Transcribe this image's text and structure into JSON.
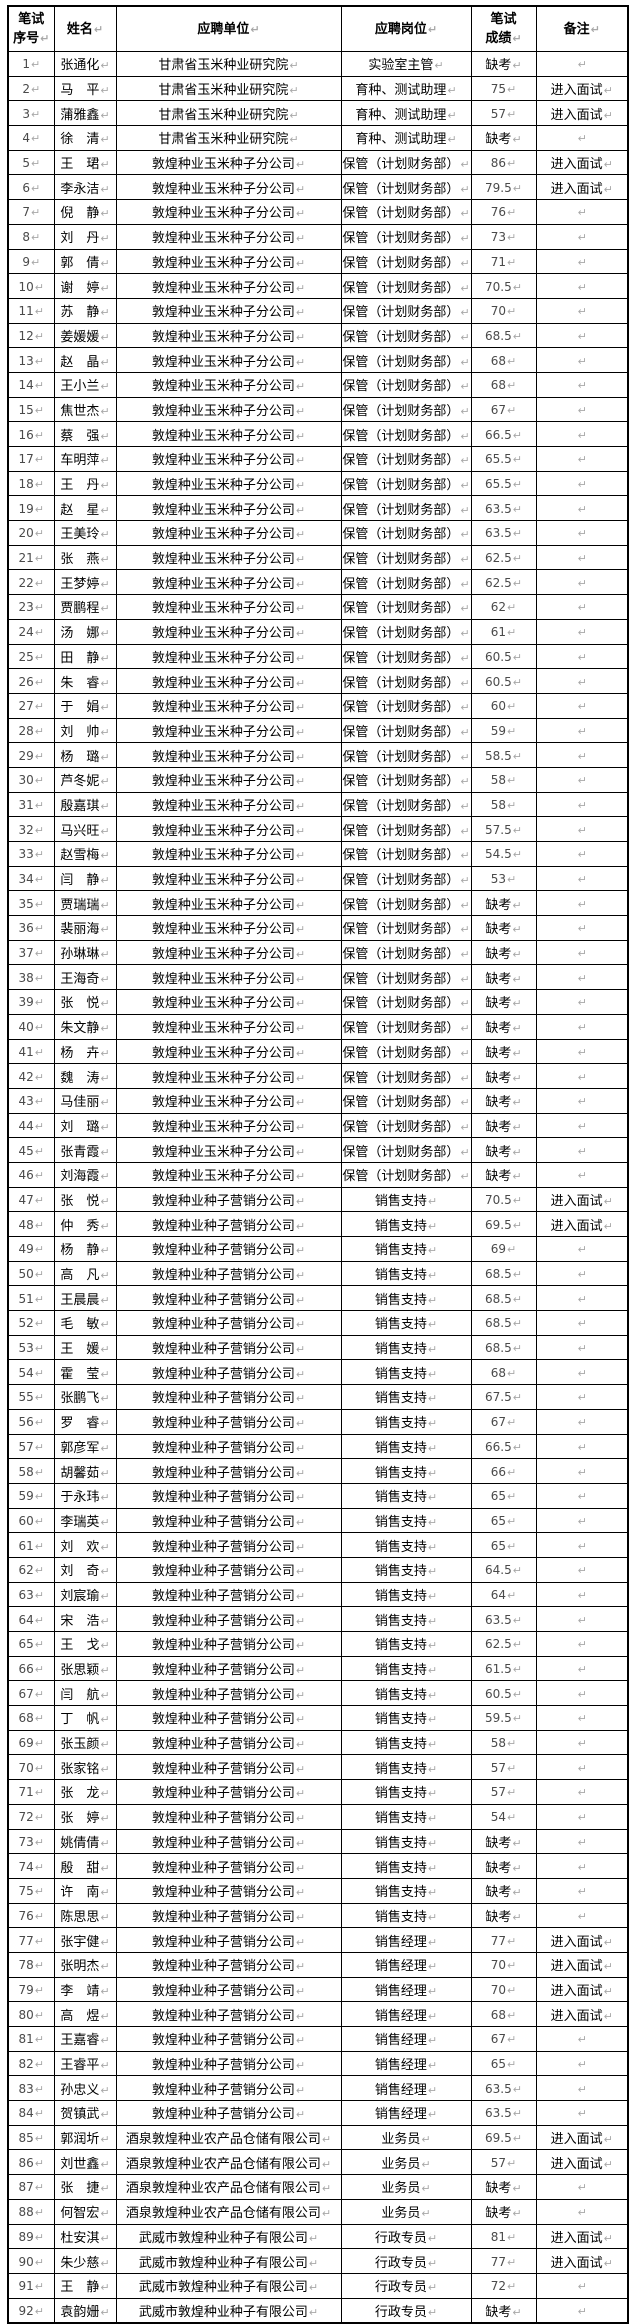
{
  "document": {
    "paragraph_mark": "↵",
    "columns": [
      {
        "key": "index",
        "label": "笔试\n序号"
      },
      {
        "key": "name",
        "label": "姓名"
      },
      {
        "key": "unit",
        "label": "应聘单位"
      },
      {
        "key": "position",
        "label": "应聘岗位"
      },
      {
        "key": "score",
        "label": "笔试\n成绩"
      },
      {
        "key": "remark",
        "label": "备注"
      }
    ],
    "remark_pass_label": "进入面试",
    "score_absent_label": "缺考",
    "rows": [
      [
        "1",
        "张通化",
        "甘肃省玉米种业研究院",
        "实验室主管",
        "缺考",
        ""
      ],
      [
        "2",
        "马　平",
        "甘肃省玉米种业研究院",
        "育种、测试助理",
        "75",
        "进入面试"
      ],
      [
        "3",
        "蒲雅鑫",
        "甘肃省玉米种业研究院",
        "育种、测试助理",
        "57",
        "进入面试"
      ],
      [
        "4",
        "徐　清",
        "甘肃省玉米种业研究院",
        "育种、测试助理",
        "缺考",
        ""
      ],
      [
        "5",
        "王　珺",
        "敦煌种业玉米种子分公司",
        "保管（计划财务部）",
        "86",
        "进入面试"
      ],
      [
        "6",
        "李永洁",
        "敦煌种业玉米种子分公司",
        "保管（计划财务部）",
        "79.5",
        "进入面试"
      ],
      [
        "7",
        "倪　静",
        "敦煌种业玉米种子分公司",
        "保管（计划财务部）",
        "76",
        ""
      ],
      [
        "8",
        "刘　丹",
        "敦煌种业玉米种子分公司",
        "保管（计划财务部）",
        "73",
        ""
      ],
      [
        "9",
        "郭　倩",
        "敦煌种业玉米种子分公司",
        "保管（计划财务部）",
        "71",
        ""
      ],
      [
        "10",
        "谢　婷",
        "敦煌种业玉米种子分公司",
        "保管（计划财务部）",
        "70.5",
        ""
      ],
      [
        "11",
        "苏　静",
        "敦煌种业玉米种子分公司",
        "保管（计划财务部）",
        "70",
        ""
      ],
      [
        "12",
        "姜媛媛",
        "敦煌种业玉米种子分公司",
        "保管（计划财务部）",
        "68.5",
        ""
      ],
      [
        "13",
        "赵　晶",
        "敦煌种业玉米种子分公司",
        "保管（计划财务部）",
        "68",
        ""
      ],
      [
        "14",
        "王小兰",
        "敦煌种业玉米种子分公司",
        "保管（计划财务部）",
        "68",
        ""
      ],
      [
        "15",
        "焦世杰",
        "敦煌种业玉米种子分公司",
        "保管（计划财务部）",
        "67",
        ""
      ],
      [
        "16",
        "蔡　强",
        "敦煌种业玉米种子分公司",
        "保管（计划财务部）",
        "66.5",
        ""
      ],
      [
        "17",
        "车明萍",
        "敦煌种业玉米种子分公司",
        "保管（计划财务部）",
        "65.5",
        ""
      ],
      [
        "18",
        "王　丹",
        "敦煌种业玉米种子分公司",
        "保管（计划财务部）",
        "65.5",
        ""
      ],
      [
        "19",
        "赵　星",
        "敦煌种业玉米种子分公司",
        "保管（计划财务部）",
        "63.5",
        ""
      ],
      [
        "20",
        "王美玲",
        "敦煌种业玉米种子分公司",
        "保管（计划财务部）",
        "63.5",
        ""
      ],
      [
        "21",
        "张　燕",
        "敦煌种业玉米种子分公司",
        "保管（计划财务部）",
        "62.5",
        ""
      ],
      [
        "22",
        "王梦婷",
        "敦煌种业玉米种子分公司",
        "保管（计划财务部）",
        "62.5",
        ""
      ],
      [
        "23",
        "贾鹏程",
        "敦煌种业玉米种子分公司",
        "保管（计划财务部）",
        "62",
        ""
      ],
      [
        "24",
        "汤　娜",
        "敦煌种业玉米种子分公司",
        "保管（计划财务部）",
        "61",
        ""
      ],
      [
        "25",
        "田　静",
        "敦煌种业玉米种子分公司",
        "保管（计划财务部）",
        "60.5",
        ""
      ],
      [
        "26",
        "朱　睿",
        "敦煌种业玉米种子分公司",
        "保管（计划财务部）",
        "60.5",
        ""
      ],
      [
        "27",
        "于　娟",
        "敦煌种业玉米种子分公司",
        "保管（计划财务部）",
        "60",
        ""
      ],
      [
        "28",
        "刘　帅",
        "敦煌种业玉米种子分公司",
        "保管（计划财务部）",
        "59",
        ""
      ],
      [
        "29",
        "杨　璐",
        "敦煌种业玉米种子分公司",
        "保管（计划财务部）",
        "58.5",
        ""
      ],
      [
        "30",
        "芦冬妮",
        "敦煌种业玉米种子分公司",
        "保管（计划财务部）",
        "58",
        ""
      ],
      [
        "31",
        "殷嘉琪",
        "敦煌种业玉米种子分公司",
        "保管（计划财务部）",
        "58",
        ""
      ],
      [
        "32",
        "马兴旺",
        "敦煌种业玉米种子分公司",
        "保管（计划财务部）",
        "57.5",
        ""
      ],
      [
        "33",
        "赵雪梅",
        "敦煌种业玉米种子分公司",
        "保管（计划财务部）",
        "54.5",
        ""
      ],
      [
        "34",
        "闫　静",
        "敦煌种业玉米种子分公司",
        "保管（计划财务部）",
        "53",
        ""
      ],
      [
        "35",
        "贾瑞瑞",
        "敦煌种业玉米种子分公司",
        "保管（计划财务部）",
        "缺考",
        ""
      ],
      [
        "36",
        "裴丽海",
        "敦煌种业玉米种子分公司",
        "保管（计划财务部）",
        "缺考",
        ""
      ],
      [
        "37",
        "孙琳琳",
        "敦煌种业玉米种子分公司",
        "保管（计划财务部）",
        "缺考",
        ""
      ],
      [
        "38",
        "王海奇",
        "敦煌种业玉米种子分公司",
        "保管（计划财务部）",
        "缺考",
        ""
      ],
      [
        "39",
        "张　悦",
        "敦煌种业玉米种子分公司",
        "保管（计划财务部）",
        "缺考",
        ""
      ],
      [
        "40",
        "朱文静",
        "敦煌种业玉米种子分公司",
        "保管（计划财务部）",
        "缺考",
        ""
      ],
      [
        "41",
        "杨　卉",
        "敦煌种业玉米种子分公司",
        "保管（计划财务部）",
        "缺考",
        ""
      ],
      [
        "42",
        "魏　涛",
        "敦煌种业玉米种子分公司",
        "保管（计划财务部）",
        "缺考",
        ""
      ],
      [
        "43",
        "马佳丽",
        "敦煌种业玉米种子分公司",
        "保管（计划财务部）",
        "缺考",
        ""
      ],
      [
        "44",
        "刘　璐",
        "敦煌种业玉米种子分公司",
        "保管（计划财务部）",
        "缺考",
        ""
      ],
      [
        "45",
        "张青霞",
        "敦煌种业玉米种子分公司",
        "保管（计划财务部）",
        "缺考",
        ""
      ],
      [
        "46",
        "刘海霞",
        "敦煌种业玉米种子分公司",
        "保管（计划财务部）",
        "缺考",
        ""
      ],
      [
        "47",
        "张　悦",
        "敦煌种业种子营销分公司",
        "销售支持",
        "70.5",
        "进入面试"
      ],
      [
        "48",
        "仲　秀",
        "敦煌种业种子营销分公司",
        "销售支持",
        "69.5",
        "进入面试"
      ],
      [
        "49",
        "杨　静",
        "敦煌种业种子营销分公司",
        "销售支持",
        "69",
        ""
      ],
      [
        "50",
        "高　凡",
        "敦煌种业种子营销分公司",
        "销售支持",
        "68.5",
        ""
      ],
      [
        "51",
        "王晨晨",
        "敦煌种业种子营销分公司",
        "销售支持",
        "68.5",
        ""
      ],
      [
        "52",
        "毛　敏",
        "敦煌种业种子营销分公司",
        "销售支持",
        "68.5",
        ""
      ],
      [
        "53",
        "王　媛",
        "敦煌种业种子营销分公司",
        "销售支持",
        "68.5",
        ""
      ],
      [
        "54",
        "霍　莹",
        "敦煌种业种子营销分公司",
        "销售支持",
        "68",
        ""
      ],
      [
        "55",
        "张鹏飞",
        "敦煌种业种子营销分公司",
        "销售支持",
        "67.5",
        ""
      ],
      [
        "56",
        "罗　睿",
        "敦煌种业种子营销分公司",
        "销售支持",
        "67",
        ""
      ],
      [
        "57",
        "郭彦军",
        "敦煌种业种子营销分公司",
        "销售支持",
        "66.5",
        ""
      ],
      [
        "58",
        "胡馨茹",
        "敦煌种业种子营销分公司",
        "销售支持",
        "66",
        ""
      ],
      [
        "59",
        "于永玮",
        "敦煌种业种子营销分公司",
        "销售支持",
        "65",
        ""
      ],
      [
        "60",
        "李瑞英",
        "敦煌种业种子营销分公司",
        "销售支持",
        "65",
        ""
      ],
      [
        "61",
        "刘　欢",
        "敦煌种业种子营销分公司",
        "销售支持",
        "65",
        ""
      ],
      [
        "62",
        "刘　奇",
        "敦煌种业种子营销分公司",
        "销售支持",
        "64.5",
        ""
      ],
      [
        "63",
        "刘宸瑜",
        "敦煌种业种子营销分公司",
        "销售支持",
        "64",
        ""
      ],
      [
        "64",
        "宋　浩",
        "敦煌种业种子营销分公司",
        "销售支持",
        "63.5",
        ""
      ],
      [
        "65",
        "王　戈",
        "敦煌种业种子营销分公司",
        "销售支持",
        "62.5",
        ""
      ],
      [
        "66",
        "张思颖",
        "敦煌种业种子营销分公司",
        "销售支持",
        "61.5",
        ""
      ],
      [
        "67",
        "闫　航",
        "敦煌种业种子营销分公司",
        "销售支持",
        "60.5",
        ""
      ],
      [
        "68",
        "丁　帆",
        "敦煌种业种子营销分公司",
        "销售支持",
        "59.5",
        ""
      ],
      [
        "69",
        "张玉颜",
        "敦煌种业种子营销分公司",
        "销售支持",
        "58",
        ""
      ],
      [
        "70",
        "张家铭",
        "敦煌种业种子营销分公司",
        "销售支持",
        "57",
        ""
      ],
      [
        "71",
        "张　龙",
        "敦煌种业种子营销分公司",
        "销售支持",
        "57",
        ""
      ],
      [
        "72",
        "张　婷",
        "敦煌种业种子营销分公司",
        "销售支持",
        "54",
        ""
      ],
      [
        "73",
        "姚倩倩",
        "敦煌种业种子营销分公司",
        "销售支持",
        "缺考",
        ""
      ],
      [
        "74",
        "殷　甜",
        "敦煌种业种子营销分公司",
        "销售支持",
        "缺考",
        ""
      ],
      [
        "75",
        "许　南",
        "敦煌种业种子营销分公司",
        "销售支持",
        "缺考",
        ""
      ],
      [
        "76",
        "陈思思",
        "敦煌种业种子营销分公司",
        "销售支持",
        "缺考",
        ""
      ],
      [
        "77",
        "张宇健",
        "敦煌种业种子营销分公司",
        "销售经理",
        "77",
        "进入面试"
      ],
      [
        "78",
        "张明杰",
        "敦煌种业种子营销分公司",
        "销售经理",
        "70",
        "进入面试"
      ],
      [
        "79",
        "李　靖",
        "敦煌种业种子营销分公司",
        "销售经理",
        "70",
        "进入面试"
      ],
      [
        "80",
        "高　煜",
        "敦煌种业种子营销分公司",
        "销售经理",
        "68",
        "进入面试"
      ],
      [
        "81",
        "王嘉睿",
        "敦煌种业种子营销分公司",
        "销售经理",
        "67",
        ""
      ],
      [
        "82",
        "王睿平",
        "敦煌种业种子营销分公司",
        "销售经理",
        "65",
        ""
      ],
      [
        "83",
        "孙忠义",
        "敦煌种业种子营销分公司",
        "销售经理",
        "63.5",
        ""
      ],
      [
        "84",
        "贺镇武",
        "敦煌种业种子营销分公司",
        "销售经理",
        "63.5",
        ""
      ],
      [
        "85",
        "郭润圻",
        "酒泉敦煌种业农产品仓储有限公司",
        "业务员",
        "69.5",
        "进入面试"
      ],
      [
        "86",
        "刘世鑫",
        "酒泉敦煌种业农产品仓储有限公司",
        "业务员",
        "57",
        "进入面试"
      ],
      [
        "87",
        "张　捷",
        "酒泉敦煌种业农产品仓储有限公司",
        "业务员",
        "缺考",
        ""
      ],
      [
        "88",
        "何智宏",
        "酒泉敦煌种业农产品仓储有限公司",
        "业务员",
        "缺考",
        ""
      ],
      [
        "89",
        "杜安淇",
        "武威市敦煌种业种子有限公司",
        "行政专员",
        "81",
        "进入面试"
      ],
      [
        "90",
        "朱少慈",
        "武威市敦煌种业种子有限公司",
        "行政专员",
        "77",
        "进入面试"
      ],
      [
        "91",
        "王　静",
        "武威市敦煌种业种子有限公司",
        "行政专员",
        "72",
        ""
      ],
      [
        "92",
        "袁韵姗",
        "武威市敦煌种业种子有限公司",
        "行政专员",
        "缺考",
        ""
      ]
    ]
  },
  "colors": {
    "border": "#000000",
    "text": "#000000",
    "numeric_text": "#4a4a4a",
    "paragraph_mark": "#a8a8a8",
    "background": "#ffffff"
  }
}
